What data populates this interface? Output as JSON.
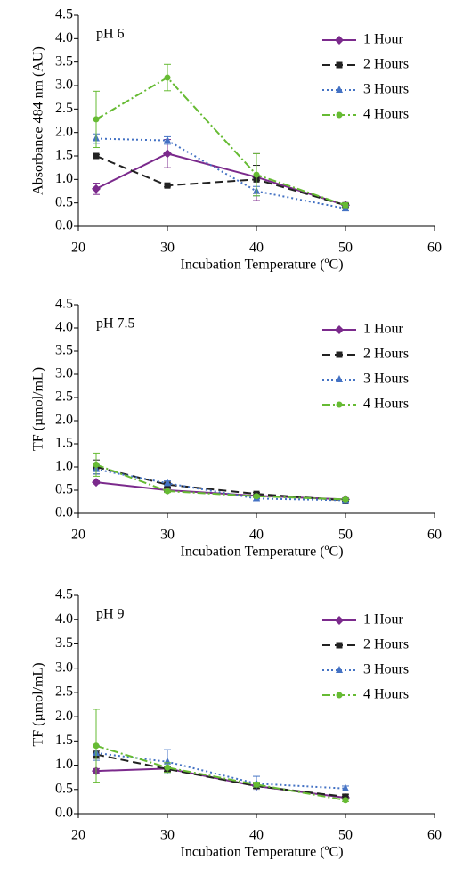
{
  "chart_data": [
    {
      "type": "line",
      "annotation": "pH 6",
      "ylabel": "Absorbance 484 nm (AU)",
      "xlabel": "Incubation Temperature (ºC)",
      "x": [
        22,
        30,
        40,
        50
      ],
      "xlim": [
        20,
        60
      ],
      "xticks": [
        20,
        30,
        40,
        50,
        60
      ],
      "ylim": [
        0,
        4.5
      ],
      "yticks": [
        {
          "value": 0,
          "label": "0.0"
        },
        0.5,
        {
          "value": 1,
          "label": "1.0"
        },
        1.5,
        {
          "value": 2,
          "label": "2.0"
        },
        2.5,
        {
          "value": 3,
          "label": "3.0"
        },
        3.5,
        {
          "value": 4,
          "label": "4.0"
        },
        4.5
      ],
      "legend": "upper right",
      "series": [
        {
          "name": "1 Hour",
          "color": "#7b2a8c",
          "style": "solid",
          "marker": "diamond",
          "values": [
            0.8,
            1.55,
            1.05,
            0.45
          ],
          "errors": [
            0.12,
            0.3,
            0.5,
            0.03
          ]
        },
        {
          "name": "2 Hours",
          "color": "#222222",
          "style": "dashed",
          "marker": "square",
          "values": [
            1.5,
            0.87,
            1.0,
            0.45
          ],
          "errors": [
            0.03,
            0.03,
            0.3,
            0.03
          ]
        },
        {
          "name": "3 Hours",
          "color": "#4472c4",
          "style": "dotted",
          "marker": "triangle",
          "values": [
            1.87,
            1.83,
            0.75,
            0.38
          ],
          "errors": [
            0.1,
            0.08,
            0.1,
            0.05
          ]
        },
        {
          "name": "4 Hours",
          "color": "#66bb33",
          "style": "dashdot",
          "marker": "circle",
          "values": [
            2.28,
            3.17,
            1.1,
            0.45
          ],
          "errors": [
            0.6,
            0.28,
            0.45,
            0.05
          ]
        }
      ]
    },
    {
      "type": "line",
      "annotation": "pH 7.5",
      "ylabel": "TF (µmol/mL)",
      "xlabel": "Incubation Temperature (ºC)",
      "x": [
        22,
        30,
        40,
        50
      ],
      "xlim": [
        20,
        60
      ],
      "xticks": [
        20,
        30,
        40,
        50,
        60
      ],
      "ylim": [
        0,
        4.5
      ],
      "yticks": [
        {
          "value": 0,
          "label": "0.0"
        },
        0.5,
        {
          "value": 1,
          "label": "1.0"
        },
        1.5,
        {
          "value": 2,
          "label": "2.0"
        },
        2.5,
        {
          "value": 3,
          "label": "3.0"
        },
        3.5,
        {
          "value": 4,
          "label": "4.0"
        },
        4.5
      ],
      "legend": "upper right",
      "series": [
        {
          "name": "1 Hour",
          "color": "#7b2a8c",
          "style": "solid",
          "marker": "diamond",
          "values": [
            0.67,
            0.5,
            0.38,
            0.3
          ],
          "errors": [
            0.03,
            0.03,
            0.03,
            0.02
          ]
        },
        {
          "name": "2 Hours",
          "color": "#222222",
          "style": "dashed",
          "marker": "square",
          "values": [
            1.0,
            0.62,
            0.42,
            0.28
          ],
          "errors": [
            0.15,
            0.05,
            0.03,
            0.02
          ]
        },
        {
          "name": "3 Hours",
          "color": "#4472c4",
          "style": "dotted",
          "marker": "triangle",
          "values": [
            0.95,
            0.65,
            0.32,
            0.28
          ],
          "errors": [
            0.1,
            0.05,
            0.05,
            0.03
          ]
        },
        {
          "name": "4 Hours",
          "color": "#66bb33",
          "style": "dashdot",
          "marker": "circle",
          "values": [
            1.05,
            0.48,
            0.37,
            0.3
          ],
          "errors": [
            0.25,
            0.03,
            0.03,
            0.02
          ]
        }
      ]
    },
    {
      "type": "line",
      "annotation": "pH 9",
      "ylabel": "TF (µmol/mL)",
      "xlabel": "Incubation Temperature (ºC)",
      "x": [
        22,
        30,
        40,
        50
      ],
      "xlim": [
        20,
        60
      ],
      "xticks": [
        20,
        30,
        40,
        50,
        60
      ],
      "ylim": [
        0,
        4.5
      ],
      "yticks": [
        {
          "value": 0,
          "label": "0.0"
        },
        0.5,
        {
          "value": 1,
          "label": "1.0"
        },
        1.5,
        {
          "value": 2,
          "label": "2.0"
        },
        2.5,
        {
          "value": 3,
          "label": "3.0"
        },
        3.5,
        {
          "value": 4,
          "label": "4.0"
        },
        4.5
      ],
      "legend": "upper right",
      "series": [
        {
          "name": "1 Hour",
          "color": "#7b2a8c",
          "style": "solid",
          "marker": "diamond",
          "values": [
            0.88,
            0.93,
            0.57,
            0.33
          ],
          "errors": [
            0.05,
            0.05,
            0.05,
            0.03
          ]
        },
        {
          "name": "2 Hours",
          "color": "#222222",
          "style": "dashed",
          "marker": "square",
          "values": [
            1.22,
            0.92,
            0.57,
            0.35
          ],
          "errors": [
            0.08,
            0.05,
            0.05,
            0.05
          ]
        },
        {
          "name": "3 Hours",
          "color": "#4472c4",
          "style": "dotted",
          "marker": "triangle",
          "values": [
            1.25,
            1.07,
            0.62,
            0.52
          ],
          "errors": [
            0.15,
            0.25,
            0.15,
            0.05
          ]
        },
        {
          "name": "4 Hours",
          "color": "#66bb33",
          "style": "dashdot",
          "marker": "circle",
          "values": [
            1.4,
            0.95,
            0.6,
            0.28
          ],
          "errors": [
            0.75,
            0.1,
            0.05,
            0.03
          ]
        }
      ]
    }
  ]
}
